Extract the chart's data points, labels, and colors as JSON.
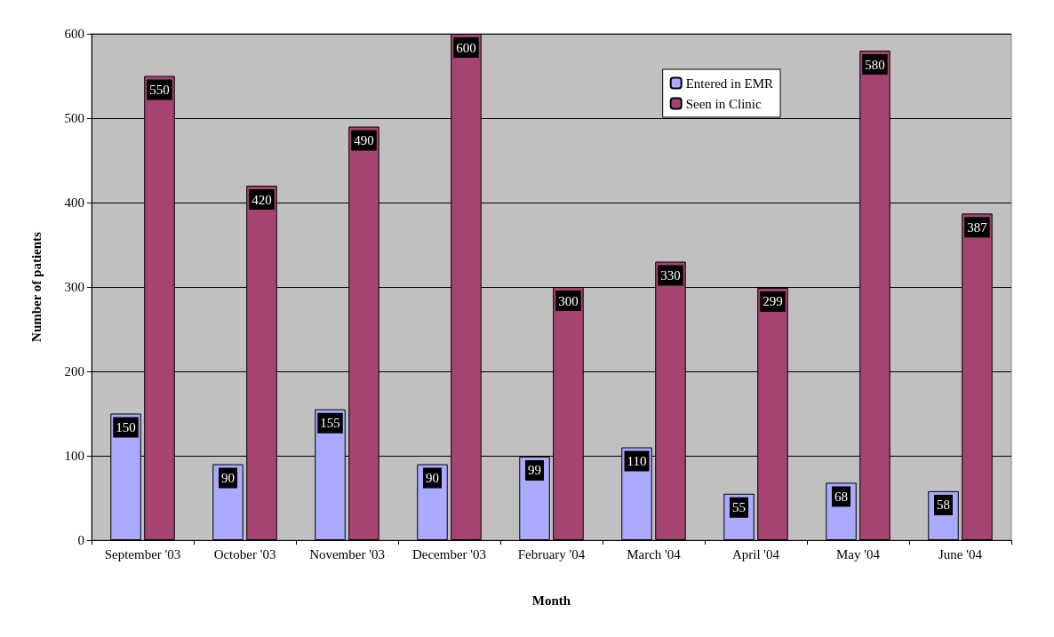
{
  "chart_data": {
    "type": "bar",
    "xlabel": "Month",
    "ylabel": "Number of patients",
    "categories": [
      "September '03",
      "October '03",
      "November '03",
      "December '03",
      "February '04",
      "March '04",
      "April '04",
      "May '04",
      "June '04"
    ],
    "series": [
      {
        "name": "Entered in EMR",
        "color": "#aaaaff",
        "values": [
          150,
          90,
          155,
          90,
          99,
          110,
          55,
          68,
          58
        ]
      },
      {
        "name": "Seen in Clinic",
        "color": "#a64471",
        "values": [
          550,
          420,
          490,
          600,
          300,
          330,
          299,
          580,
          387
        ]
      }
    ],
    "ylim": [
      0,
      600
    ],
    "yticks": [
      0,
      100,
      200,
      300,
      400,
      500,
      600
    ],
    "grid": "y",
    "legend": "top right",
    "data_labels": true
  }
}
